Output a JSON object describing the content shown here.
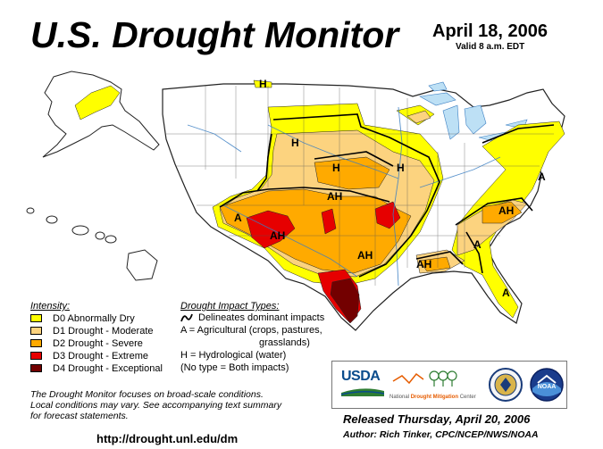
{
  "title": "U.S. Drought Monitor",
  "date": "April 18, 2006",
  "valid": "Valid 8 a.m. EDT",
  "colors": {
    "d0": "#ffff00",
    "d1": "#fcd37f",
    "d2": "#ffaa00",
    "d3": "#e60000",
    "d4": "#730000",
    "water": "#bde0f5"
  },
  "map_labels": [
    {
      "text": "H"
    },
    {
      "text": "H"
    },
    {
      "text": "H"
    },
    {
      "text": "H"
    },
    {
      "text": "AH"
    },
    {
      "text": "A"
    },
    {
      "text": "AH"
    },
    {
      "text": "AH"
    },
    {
      "text": "AH"
    },
    {
      "text": "AH"
    },
    {
      "text": "A"
    },
    {
      "text": "A"
    },
    {
      "text": "A"
    }
  ],
  "legend": {
    "title": "Intensity:",
    "items": [
      {
        "code": "d0",
        "label": "D0 Abnormally Dry"
      },
      {
        "code": "d1",
        "label": "D1 Drought - Moderate"
      },
      {
        "code": "d2",
        "label": "D2 Drought - Severe"
      },
      {
        "code": "d3",
        "label": "D3 Drought - Extreme"
      },
      {
        "code": "d4",
        "label": "D4 Drought - Exceptional"
      }
    ]
  },
  "impact": {
    "title": "Drought Impact Types:",
    "delineates": "Delineates dominant impacts",
    "agricultural_1": "A = Agricultural (crops, pastures,",
    "agricultural_2": "grasslands)",
    "hydrological": "H = Hydrological (water)",
    "both": "(No type = Both impacts)"
  },
  "note": {
    "line1": "The Drought Monitor focuses on broad-scale conditions.",
    "line2": "Local conditions may vary.  See accompanying text summary",
    "line3": "for forecast statements."
  },
  "url": "http://drought.unl.edu/dm",
  "logos": {
    "usda": "USDA",
    "ndmc_prefix": "National",
    "ndmc_name": "Drought Mitigation",
    "ndmc_suffix": "Center",
    "noaa": "NOAA"
  },
  "released": "Released Thursday, April 20, 2006",
  "author": "Author:  Rich Tinker, CPC/NCEP/NWS/NOAA"
}
